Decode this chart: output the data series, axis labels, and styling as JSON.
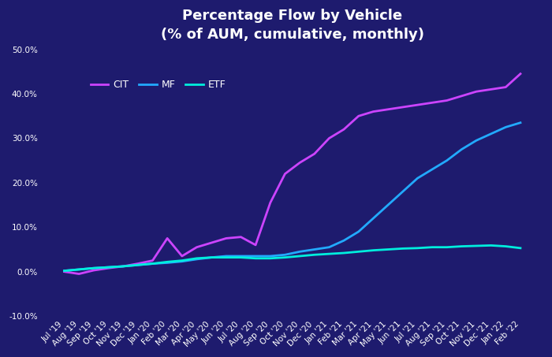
{
  "title": "Percentage Flow by Vehicle\n(% of AUM, cumulative, monthly)",
  "background_color": "#1e1b6e",
  "plot_bg_color": "#1e1b6e",
  "text_color": "#ffffff",
  "grid_color": "#2d2890",
  "x_labels": [
    "Jul '19",
    "Aug '19",
    "Sep '19",
    "Oct '19",
    "Nov '19",
    "Dec '19",
    "Jan '20",
    "Feb '20",
    "Mar '20",
    "Apr '20",
    "May '20",
    "Jun '20",
    "Jul '20",
    "Aug '20",
    "Sep '20",
    "Oct '20",
    "Nov '20",
    "Dec '20",
    "Jan '21",
    "Feb '21",
    "Mar '21",
    "Apr '21",
    "May '21",
    "Jun '21",
    "Jul '21",
    "Aug '21",
    "Sep '21",
    "Oct '21",
    "Nov '21",
    "Dec '21",
    "Jan '22",
    "Feb '22"
  ],
  "CIT": [
    0.0,
    -0.5,
    0.3,
    0.8,
    1.2,
    1.8,
    2.5,
    7.5,
    3.5,
    5.5,
    6.5,
    7.5,
    7.8,
    6.0,
    15.5,
    22.0,
    24.5,
    26.5,
    30.0,
    32.0,
    35.0,
    36.0,
    36.5,
    37.0,
    37.5,
    38.0,
    38.5,
    39.5,
    40.5,
    41.0,
    41.5,
    44.5
  ],
  "MF": [
    0.2,
    0.5,
    0.8,
    1.0,
    1.2,
    1.5,
    1.8,
    2.0,
    2.3,
    2.8,
    3.2,
    3.5,
    3.5,
    3.5,
    3.5,
    3.8,
    4.5,
    5.0,
    5.5,
    7.0,
    9.0,
    12.0,
    15.0,
    18.0,
    21.0,
    23.0,
    25.0,
    27.5,
    29.5,
    31.0,
    32.5,
    33.5
  ],
  "ETF": [
    0.2,
    0.5,
    0.8,
    1.0,
    1.2,
    1.5,
    1.8,
    2.2,
    2.5,
    3.0,
    3.2,
    3.2,
    3.2,
    3.0,
    3.0,
    3.2,
    3.5,
    3.8,
    4.0,
    4.2,
    4.5,
    4.8,
    5.0,
    5.2,
    5.3,
    5.5,
    5.5,
    5.7,
    5.8,
    5.9,
    5.7,
    5.3
  ],
  "CIT_color": "#cc44ff",
  "MF_color": "#22aaff",
  "ETF_color": "#00eedd",
  "ylim": [
    -10.0,
    50.0
  ],
  "yticks": [
    -10.0,
    0.0,
    10.0,
    20.0,
    30.0,
    40.0,
    50.0
  ],
  "line_width": 2.0,
  "title_fontsize": 13,
  "legend_fontsize": 9,
  "tick_fontsize": 7.5
}
